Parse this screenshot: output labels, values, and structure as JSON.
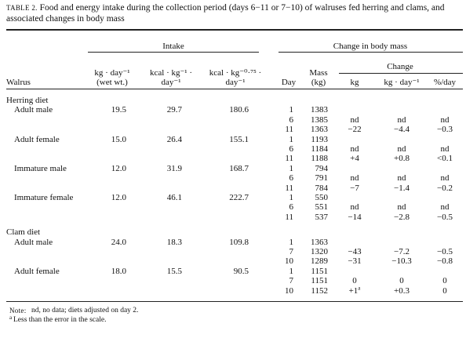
{
  "caption": {
    "label": "TABLE 2.",
    "text": "Food and energy intake during the collection period (days 6−11 or 7−10) of walruses fed herring and clams, and associated changes in body mass"
  },
  "header": {
    "intake": "Intake",
    "change_body_mass": "Change in body mass",
    "change": "Change",
    "walrus": "Walrus",
    "intake_kg": [
      "kg · day⁻¹",
      "(wet wt.)"
    ],
    "intake_kcal": [
      "kcal · kg⁻¹ ·",
      "day⁻¹"
    ],
    "intake_kcal_075": [
      "kcal · kg⁻⁰·⁷⁵ ·",
      "day⁻¹"
    ],
    "day": "Day",
    "mass": [
      "Mass",
      "(kg)"
    ],
    "kg": "kg",
    "kg_day": "kg · day⁻¹",
    "pct_day": "%/day"
  },
  "groups": [
    {
      "label": "Herring diet",
      "animals": [
        {
          "name": "Adult male",
          "intake": [
            "19.5",
            "29.7",
            "180.6"
          ],
          "rows": [
            {
              "day": "1",
              "mass": "1383"
            },
            {
              "day": "6",
              "mass": "1385",
              "kg": "nd",
              "kg_day": "nd",
              "pct_day": "nd"
            },
            {
              "day": "11",
              "mass": "1363",
              "kg": "−22",
              "kg_day": "−4.4",
              "pct_day": "−0.3"
            }
          ]
        },
        {
          "name": "Adult female",
          "intake": [
            "15.0",
            "26.4",
            "155.1"
          ],
          "rows": [
            {
              "day": "1",
              "mass": "1193"
            },
            {
              "day": "6",
              "mass": "1184",
              "kg": "nd",
              "kg_day": "nd",
              "pct_day": "nd"
            },
            {
              "day": "11",
              "mass": "1188",
              "kg": "+4",
              "kg_day": "+0.8",
              "pct_day": "<0.1"
            }
          ]
        },
        {
          "name": "Immature male",
          "intake": [
            "12.0",
            "31.9",
            "168.7"
          ],
          "rows": [
            {
              "day": "1",
              "mass": "794"
            },
            {
              "day": "6",
              "mass": "791",
              "kg": "nd",
              "kg_day": "nd",
              "pct_day": "nd"
            },
            {
              "day": "11",
              "mass": "784",
              "kg": "−7",
              "kg_day": "−1.4",
              "pct_day": "−0.2"
            }
          ]
        },
        {
          "name": "Immature female",
          "intake": [
            "12.0",
            "46.1",
            "222.7"
          ],
          "rows": [
            {
              "day": "1",
              "mass": "550"
            },
            {
              "day": "6",
              "mass": "551",
              "kg": "nd",
              "kg_day": "nd",
              "pct_day": "nd"
            },
            {
              "day": "11",
              "mass": "537",
              "kg": "−14",
              "kg_day": "−2.8",
              "pct_day": "−0.5"
            }
          ]
        }
      ]
    },
    {
      "label": "Clam diet",
      "animals": [
        {
          "name": "Adult male",
          "intake": [
            "24.0",
            "18.3",
            "109.8"
          ],
          "rows": [
            {
              "day": "1",
              "mass": "1363"
            },
            {
              "day": "7",
              "mass": "1320",
              "kg": "−43",
              "kg_day": "−7.2",
              "pct_day": "−0.5"
            },
            {
              "day": "10",
              "mass": "1289",
              "kg": "−31",
              "kg_day": "−10.3",
              "pct_day": "−0.8"
            }
          ]
        },
        {
          "name": "Adult female",
          "intake": [
            "18.0",
            "15.5",
            "90.5"
          ],
          "rows": [
            {
              "day": "1",
              "mass": "1151"
            },
            {
              "day": "7",
              "mass": "1151",
              "kg": "0",
              "kg_day": "0",
              "pct_day": "0"
            },
            {
              "day": "10",
              "mass": "1152",
              "kg": "+1",
              "kg_note": "a",
              "kg_day": "+0.3",
              "pct_day": "0"
            }
          ]
        }
      ]
    }
  ],
  "notes": {
    "note_label": "Note:",
    "note": "nd, no data; diets adjusted on day 2.",
    "footnote_marker": "a",
    "footnote": "Less than the error in the scale."
  }
}
